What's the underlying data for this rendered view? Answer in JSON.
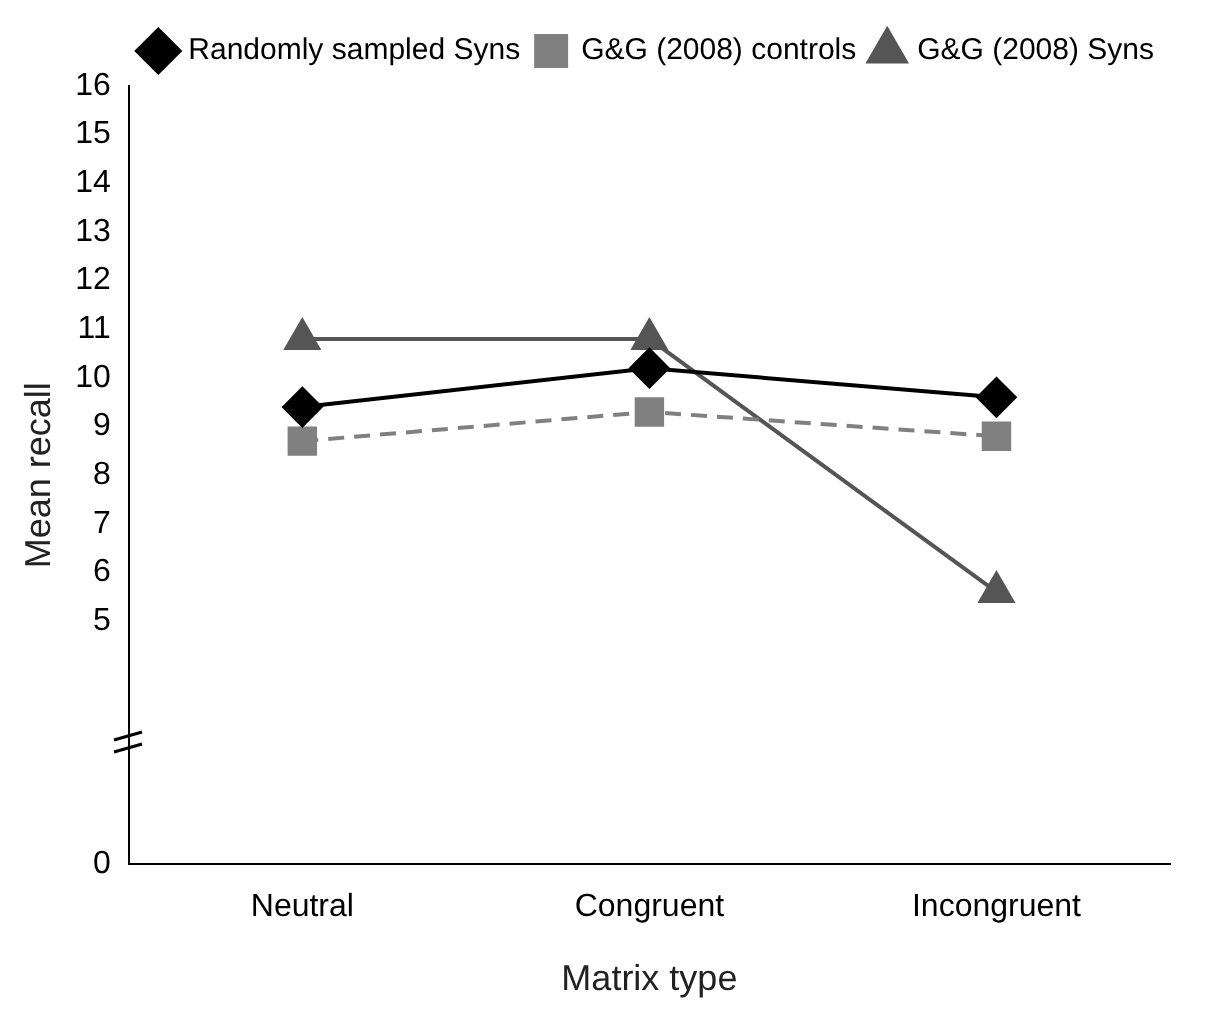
{
  "chart_data": {
    "type": "line",
    "xlabel": "Matrix type",
    "ylabel": "Mean recall",
    "categories": [
      "Neutral",
      "Congruent",
      "Incongruent"
    ],
    "ylim": [
      0,
      16
    ],
    "yticks": [
      0,
      5,
      6,
      7,
      8,
      9,
      10,
      11,
      12,
      13,
      14,
      15,
      16
    ],
    "grid": false,
    "legend": "top right",
    "series": [
      {
        "name": "Randomly sampled Syns",
        "color": "#000000",
        "values": [
          9.4,
          10.2,
          9.6
        ],
        "marker": "diamond",
        "line_style": "solid"
      },
      {
        "name": "G&G (2008) controls",
        "color": "#808080",
        "values": [
          8.7,
          9.3,
          8.8
        ],
        "marker": "square",
        "line_style": "dashed"
      },
      {
        "name": "G&G (2008) Syns",
        "color": "#555555",
        "values": [
          10.8,
          10.8,
          5.6
        ],
        "marker": "triangle",
        "line_style": "solid"
      }
    ]
  }
}
